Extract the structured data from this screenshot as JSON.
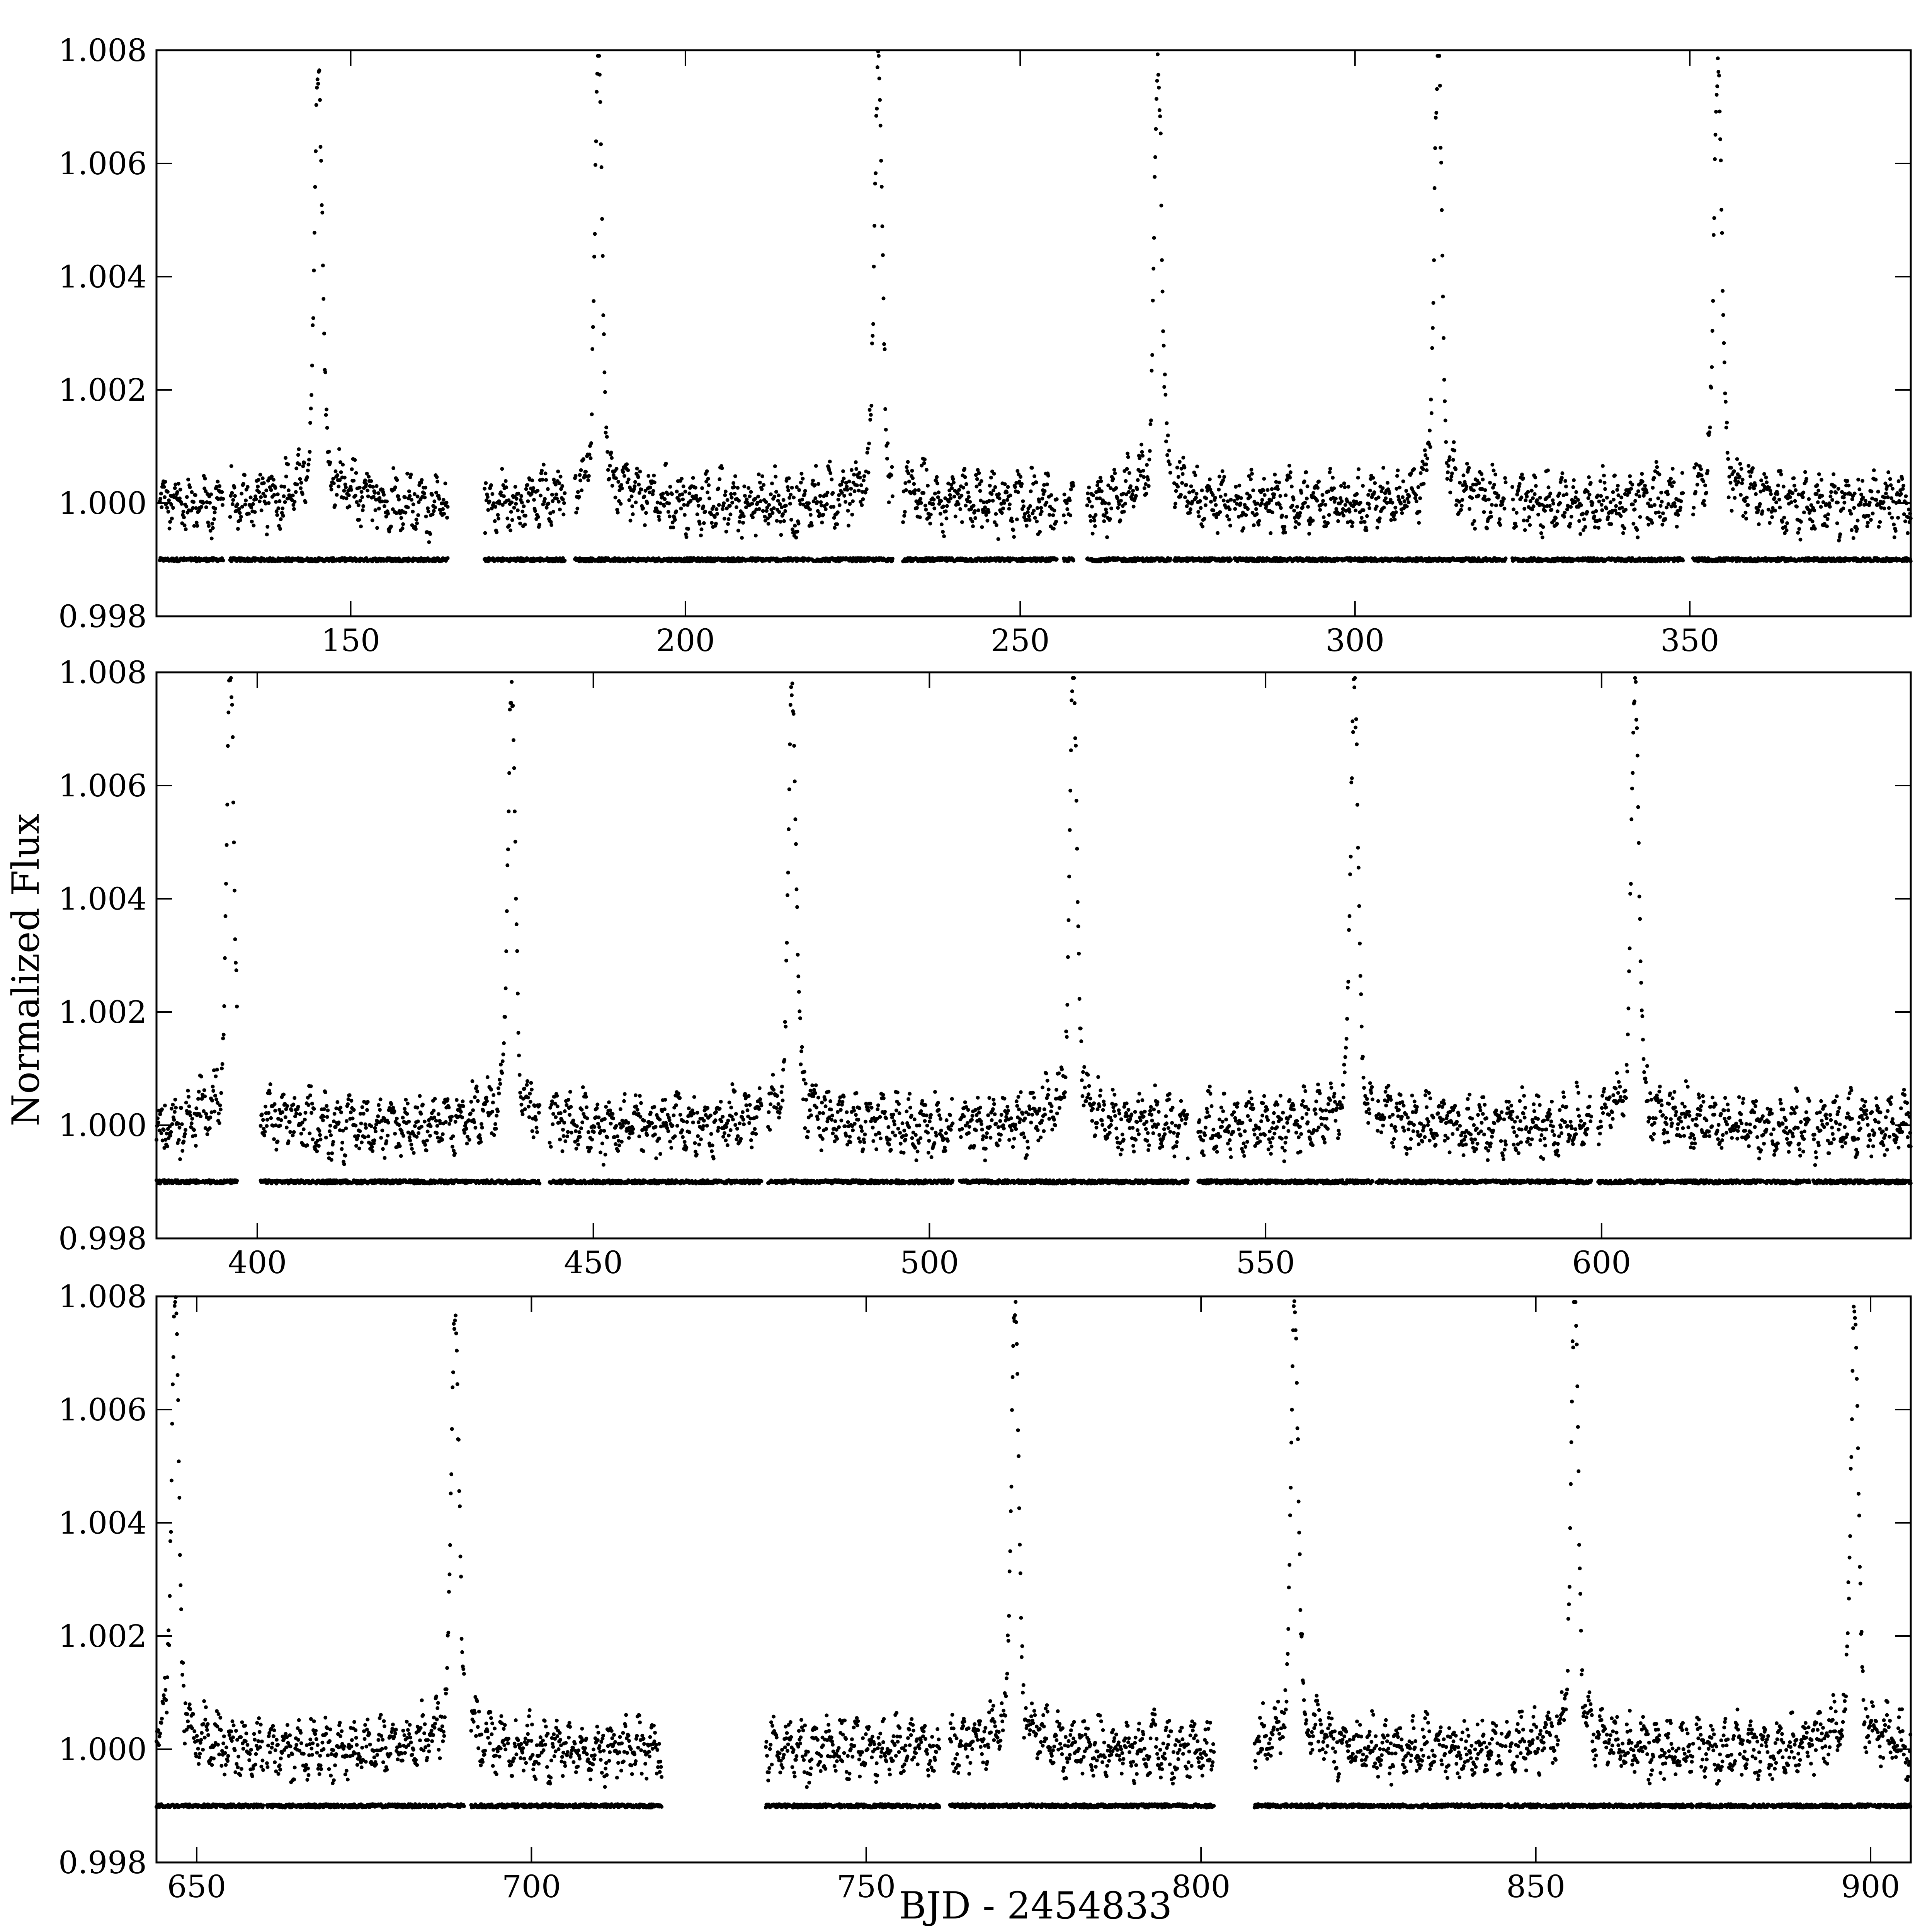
{
  "figure": {
    "xlabel": "BJD - 2454833",
    "ylabel": "Normalized Flux",
    "colors": {
      "points": "#000000",
      "frame": "#000000",
      "background": "#ffffff"
    }
  },
  "chart_data": [
    {
      "type": "scatter",
      "panel": "top",
      "xlim": [
        121,
        383
      ],
      "ylim": [
        0.998,
        1.008
      ],
      "xticks": [
        150,
        200,
        250,
        300,
        350
      ],
      "xtick_labels": [
        "150",
        "200",
        "250",
        "300",
        "350"
      ],
      "yticks": [
        0.998,
        1.0,
        1.002,
        1.004,
        1.006,
        1.008
      ],
      "ytick_labels": [
        "0.998",
        "1.000",
        "1.002",
        "1.004",
        "1.006",
        "1.008"
      ],
      "series": [
        {
          "role": "light curve",
          "baseline": 1.0,
          "scatter": 0.00035,
          "marker": "dot",
          "peak_amplitude": 1.0072,
          "peak_times": [
            145.2,
            187.0,
            228.8,
            270.6,
            312.4,
            354.2
          ]
        },
        {
          "role": "reference",
          "level": 0.999,
          "marker": "dot"
        }
      ],
      "segments": [
        [
          121.5,
          131.0
        ],
        [
          132.0,
          164.5
        ],
        [
          170.0,
          182.0
        ],
        [
          183.5,
          231.0
        ],
        [
          232.5,
          255.5
        ],
        [
          256.5,
          258.0
        ],
        [
          260.0,
          272.5
        ],
        [
          273.0,
          281.5
        ],
        [
          282.0,
          322.5
        ],
        [
          323.5,
          349.0
        ],
        [
          350.5,
          383.0
        ]
      ]
    },
    {
      "type": "scatter",
      "panel": "middle",
      "xlim": [
        385,
        646
      ],
      "ylim": [
        0.998,
        1.008
      ],
      "xticks": [
        400,
        450,
        500,
        550,
        600
      ],
      "xtick_labels": [
        "400",
        "450",
        "500",
        "550",
        "600"
      ],
      "yticks": [
        0.998,
        1.0,
        1.002,
        1.004,
        1.006,
        1.008
      ],
      "ytick_labels": [
        "0.998",
        "1.000",
        "1.002",
        "1.004",
        "1.006",
        "1.008"
      ],
      "series": [
        {
          "role": "light curve",
          "baseline": 1.0,
          "scatter": 0.00035,
          "marker": "dot",
          "peak_amplitude": 1.0071,
          "peak_times": [
            396.0,
            437.8,
            479.6,
            521.4,
            563.2,
            605.0
          ]
        },
        {
          "role": "reference",
          "level": 0.999,
          "marker": "dot"
        }
      ],
      "segments": [
        [
          385.0,
          397.0
        ],
        [
          400.5,
          442.0
        ],
        [
          443.5,
          475.0
        ],
        [
          476.0,
          503.5
        ],
        [
          504.5,
          538.5
        ],
        [
          540.0,
          566.0
        ],
        [
          566.5,
          598.5
        ],
        [
          599.5,
          631.0
        ],
        [
          631.5,
          646.0
        ]
      ]
    },
    {
      "type": "scatter",
      "panel": "bottom",
      "xlim": [
        644,
        906
      ],
      "ylim": [
        0.998,
        1.008
      ],
      "xticks": [
        650,
        700,
        750,
        800,
        850,
        900
      ],
      "xtick_labels": [
        "650",
        "700",
        "750",
        "800",
        "850",
        "900"
      ],
      "yticks": [
        0.998,
        1.0,
        1.002,
        1.004,
        1.006,
        1.008
      ],
      "ytick_labels": [
        "0.998",
        "1.000",
        "1.002",
        "1.004",
        "1.006",
        "1.008"
      ],
      "series": [
        {
          "role": "light curve",
          "baseline": 1.0,
          "scatter": 0.00035,
          "marker": "dot",
          "peak_amplitude": 1.0071,
          "peak_times": [
            646.8,
            688.6,
            772.2,
            814.0,
            855.8,
            897.6
          ]
        },
        {
          "role": "reference",
          "level": 0.999,
          "marker": "dot"
        }
      ],
      "segments": [
        [
          644.0,
          660.0
        ],
        [
          660.5,
          690.0
        ],
        [
          691.0,
          719.5
        ],
        [
          735.0,
          761.0
        ],
        [
          762.5,
          802.0
        ],
        [
          808.0,
          845.0
        ],
        [
          845.5,
          873.5
        ],
        [
          874.0,
          906.0
        ]
      ]
    }
  ]
}
